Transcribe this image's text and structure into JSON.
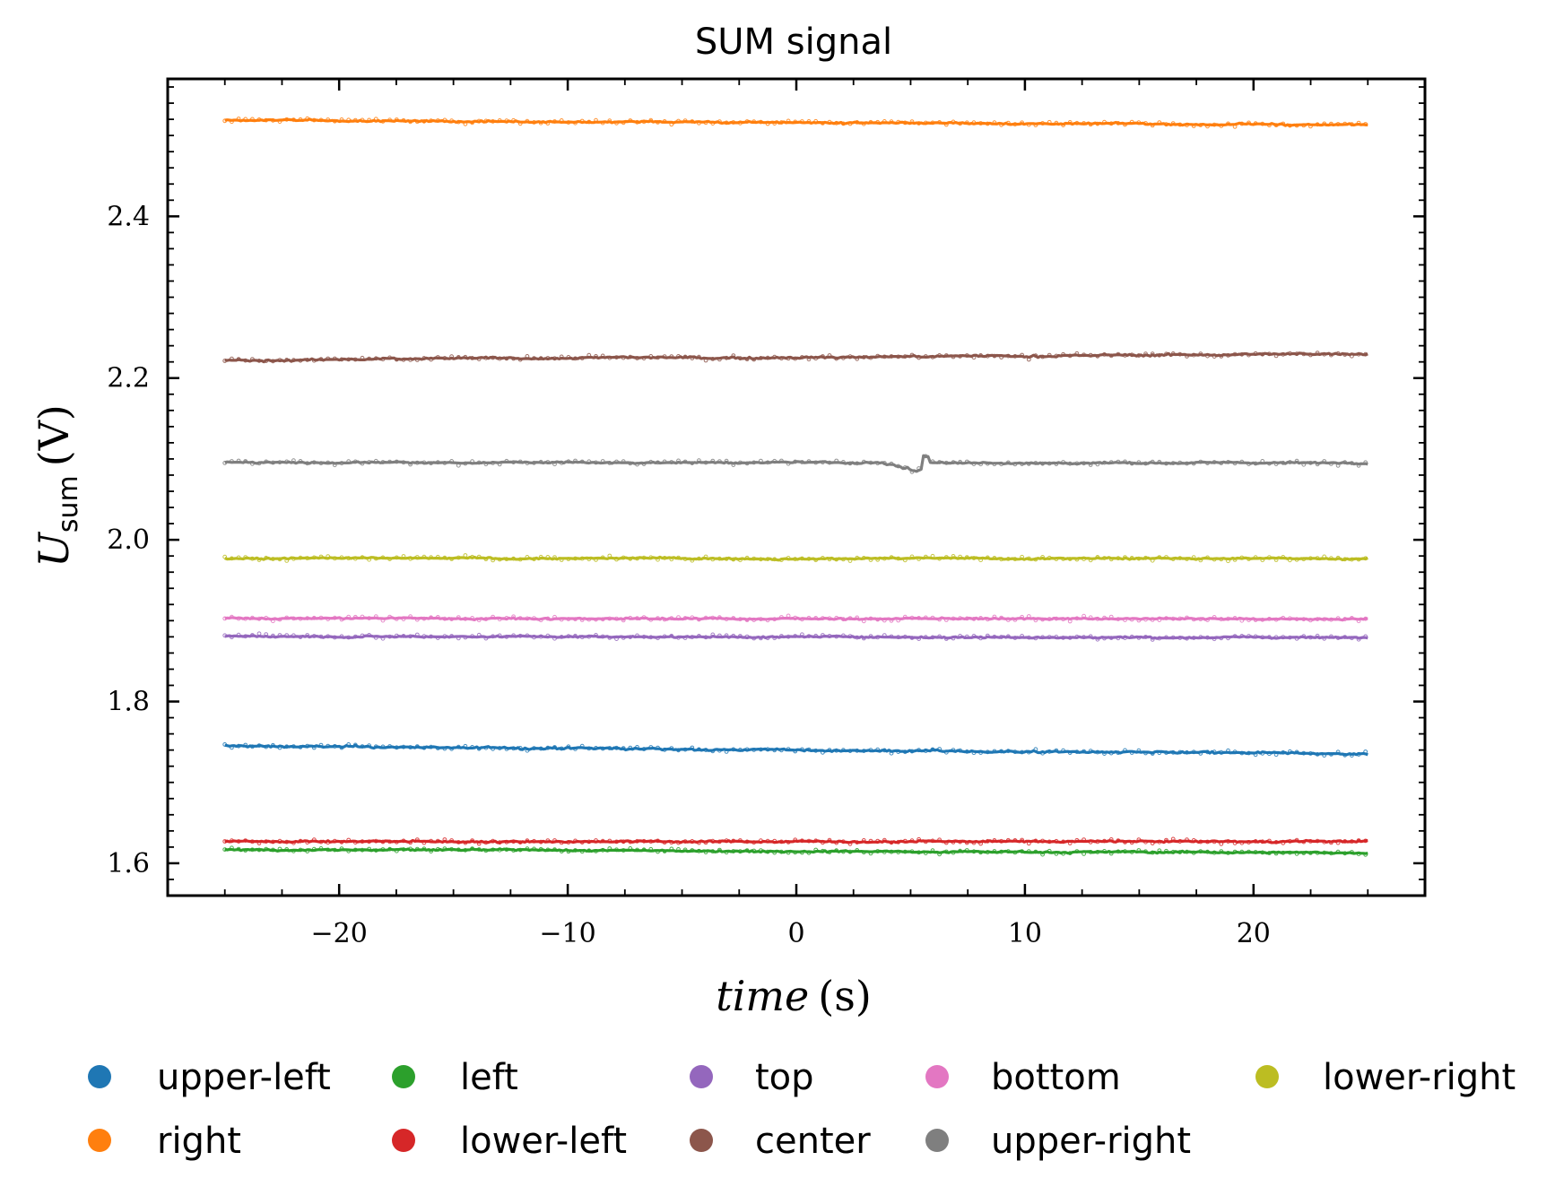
{
  "chart_data": {
    "type": "scatter",
    "title": "SUM signal",
    "xlabel": "time (s)",
    "xlabel_italic": "time",
    "xlabel_unit": "(s)",
    "ylabel": "U_sum (V)",
    "ylabel_main": "U",
    "ylabel_sub": "sum",
    "ylabel_unit": "(V)",
    "xlim": [
      -27.5,
      27.5
    ],
    "ylim": [
      1.56,
      2.57
    ],
    "x_range": [
      -25,
      25
    ],
    "xticks": [
      -20,
      -10,
      0,
      10,
      20
    ],
    "xtick_labels": [
      "−20",
      "−10",
      "0",
      "10",
      "20"
    ],
    "yticks": [
      1.6,
      1.8,
      2.0,
      2.2,
      2.4
    ],
    "ytick_labels": [
      "1.6",
      "1.8",
      "2.0",
      "2.2",
      "2.4"
    ],
    "legend_position": "bottom-outside",
    "grid": false,
    "series": [
      {
        "name": "upper-left",
        "color": "#1f77b4",
        "start": 1.745,
        "end": 1.735,
        "noise": 0.0025
      },
      {
        "name": "right",
        "color": "#ff7f0e",
        "start": 2.519,
        "end": 2.513,
        "noise": 0.002
      },
      {
        "name": "left",
        "color": "#2ca02c",
        "start": 1.617,
        "end": 1.613,
        "noise": 0.002
      },
      {
        "name": "lower-left",
        "color": "#d62728",
        "start": 1.627,
        "end": 1.627,
        "noise": 0.002
      },
      {
        "name": "top",
        "color": "#9467bd",
        "start": 1.881,
        "end": 1.879,
        "noise": 0.002
      },
      {
        "name": "center",
        "color": "#8c564b",
        "start": 2.222,
        "end": 2.23,
        "noise": 0.0025
      },
      {
        "name": "bottom",
        "color": "#e377c2",
        "start": 1.903,
        "end": 1.902,
        "noise": 0.002
      },
      {
        "name": "upper-right",
        "color": "#7f7f7f",
        "start": 2.096,
        "end": 2.095,
        "noise": 0.002,
        "dip_at": 5.5,
        "dip_depth": 0.012
      },
      {
        "name": "lower-right",
        "color": "#bcbd22",
        "start": 1.977,
        "end": 1.977,
        "noise": 0.002
      }
    ]
  }
}
